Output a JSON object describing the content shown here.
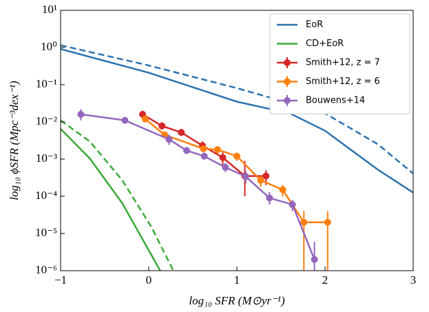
{
  "chart_data": {
    "type": "line",
    "xlabel": "log₁₀ SFR (M⊙yr⁻¹)",
    "ylabel": "log₁₀ ϕSFR (Mpc⁻³dex⁻¹)",
    "xlim": [
      -1,
      3
    ],
    "xticks": [
      {
        "value": -1,
        "label": "−1"
      },
      0,
      1,
      2,
      3
    ],
    "ylim": [
      1e-06,
      10
    ],
    "log_y": true,
    "yticks": [
      {
        "value": 1e-06,
        "label": "10⁻⁶"
      },
      {
        "value": 1e-05,
        "label": "10⁻⁵"
      },
      {
        "value": 0.0001,
        "label": "10⁻⁴"
      },
      {
        "value": 0.001,
        "label": "10⁻³"
      },
      {
        "value": 0.01,
        "label": "10⁻²"
      },
      {
        "value": 0.1,
        "label": "10⁻¹"
      },
      {
        "value": 1,
        "label": "10⁰"
      },
      {
        "value": 10,
        "label": "10¹"
      }
    ],
    "legend": "upper right",
    "series": [
      {
        "name": "EoR",
        "color": "#2b73b0",
        "dash": false,
        "x": [
          -1,
          0,
          1,
          1.6,
          2,
          2.6,
          3
        ],
        "values": [
          0.91,
          0.21,
          0.035,
          0.017,
          0.0058,
          0.00052,
          0.000126
        ]
      },
      {
        "color": "#2b73b0",
        "dash": true,
        "x": [
          -1,
          0,
          1,
          2,
          2.6,
          3
        ],
        "values": [
          1.15,
          0.33,
          0.081,
          0.017,
          0.0025,
          0.00041
        ]
      },
      {
        "name": "CD+EoR",
        "color": "#3aaa35",
        "dash": false,
        "x": [
          -1,
          -0.67,
          -0.3,
          0.13
        ],
        "values": [
          0.0065,
          0.00105,
          6.5e-05,
          1e-06
        ]
      },
      {
        "color": "#3aaa35",
        "dash": true,
        "x": [
          -1,
          -0.67,
          -0.3,
          0.03,
          0.28
        ],
        "values": [
          0.011,
          0.003,
          0.00027,
          1.5e-05,
          1e-06
        ]
      },
      {
        "name": "Smith+12, z = 7",
        "color": "#d62728",
        "dash": false,
        "marker": true,
        "x": [
          -0.07,
          0.15,
          0.37,
          0.61,
          0.84,
          1.09,
          1.33
        ],
        "values": [
          0.016,
          0.0078,
          0.0052,
          0.0023,
          0.0011,
          0.00035,
          0.00035
        ],
        "ylow": [
          0.012,
          0.0062,
          0.0042,
          0.0016,
          0.0007,
          0.0001,
          0.0002
        ],
        "yhigh": [
          0.02,
          0.0098,
          0.0065,
          0.003,
          0.0016,
          0.0009,
          0.0005
        ]
      },
      {
        "name": "Smith+12, z = 6",
        "color": "#ff7f0e",
        "dash": false,
        "marker": true,
        "x": [
          -0.04,
          0.18,
          0.62,
          0.78,
          1.0,
          1.27,
          1.52,
          1.76,
          2.03
        ],
        "values": [
          0.012,
          0.0045,
          0.0019,
          0.0018,
          0.0012,
          0.00027,
          0.00015,
          2e-05,
          2e-05
        ],
        "ylow": [
          0.0105,
          0.0038,
          0.0015,
          0.0014,
          0.0009,
          0.00018,
          0.0001,
          1e-06,
          1e-06
        ],
        "yhigh": [
          0.014,
          0.0053,
          0.0023,
          0.0022,
          0.0015,
          0.00035,
          0.0002,
          4e-05,
          4e-05
        ]
      },
      {
        "name": "Bouwens+14",
        "color": "#9467bd",
        "dash": false,
        "marker": true,
        "x": [
          -0.77,
          -0.27,
          0.23,
          0.43,
          0.63,
          0.87,
          1.1,
          1.37,
          1.63,
          1.88
        ],
        "values": [
          0.016,
          0.011,
          0.0034,
          0.0017,
          0.0012,
          0.0006,
          0.00034,
          9e-05,
          6e-05,
          2e-06
        ],
        "ylow": [
          0.011,
          0.009,
          0.0024,
          0.0014,
          0.001,
          0.00045,
          0.00022,
          6e-05,
          4e-05,
          1e-06
        ],
        "yhigh": [
          0.022,
          0.013,
          0.0046,
          0.002,
          0.0014,
          0.0008,
          0.00048,
          0.00013,
          8e-05,
          6e-06
        ]
      }
    ]
  }
}
